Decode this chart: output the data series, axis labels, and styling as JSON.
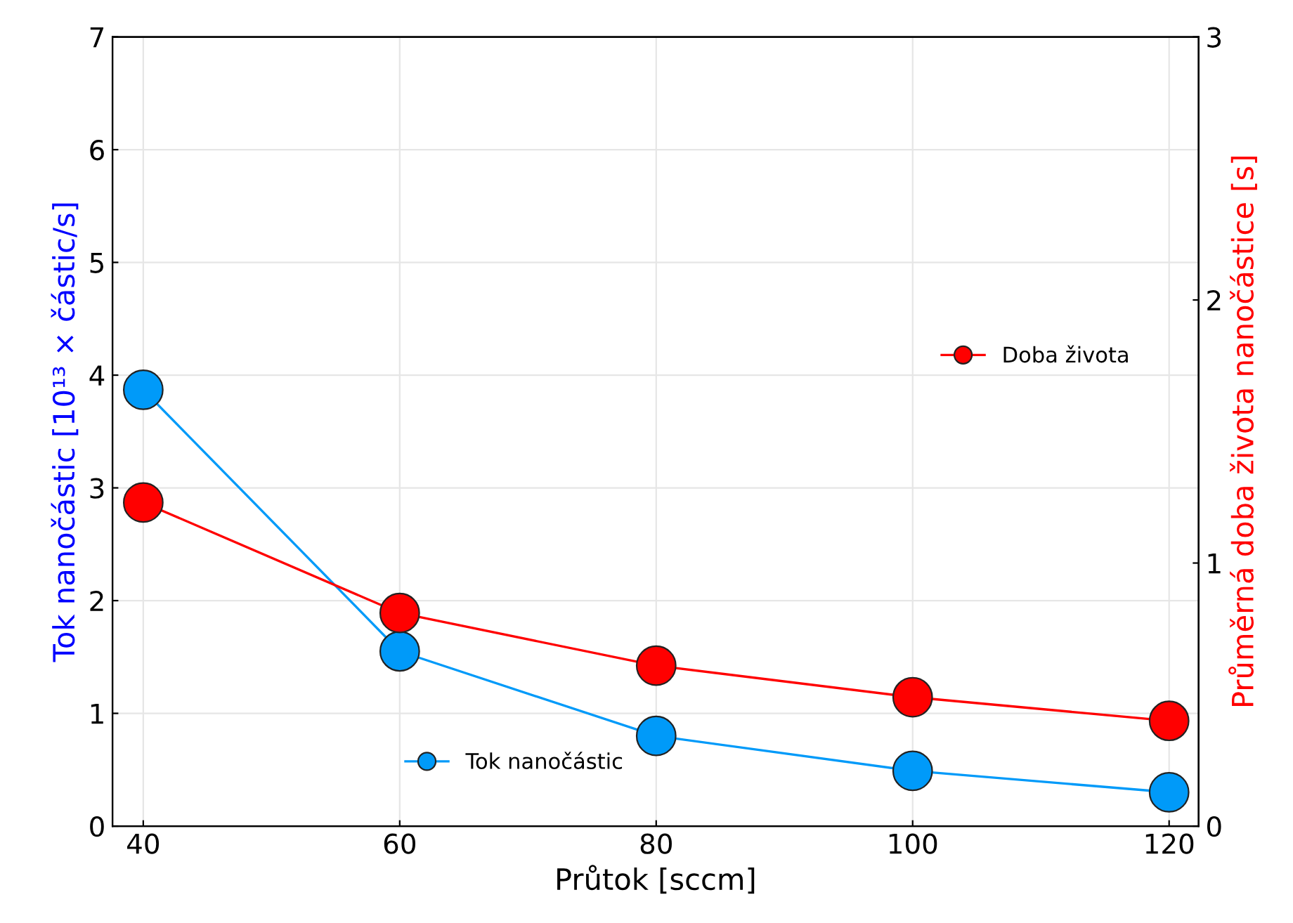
{
  "chart_data": {
    "type": "line",
    "xlabel": "Průtok [sccm]",
    "ylabel": "Tok nanočástic [10¹³ × částic/s]",
    "y2label": "Průměrná doba života nanočástice [s]",
    "x": [
      40,
      60,
      80,
      100,
      120
    ],
    "series": [
      {
        "name": "Tok nanočástic",
        "color": "#009af9",
        "values": [
          3.87,
          1.55,
          0.8,
          0.49,
          0.3
        ]
      },
      {
        "name": "Doba života",
        "color": "#ff0000",
        "axis": "y2",
        "values": [
          1.23,
          0.81,
          0.61,
          0.49,
          0.4
        ]
      }
    ],
    "xlim": [
      37.6,
      122.3
    ],
    "xticks": [
      40,
      60,
      80,
      100,
      120
    ],
    "ylim": [
      0,
      7
    ],
    "yticks": [
      0,
      1,
      2,
      3,
      4,
      5,
      6,
      7
    ],
    "y2lim": [
      0,
      3
    ],
    "y2ticks": [
      0,
      1,
      2,
      3
    ],
    "grid": true,
    "marker": "circle",
    "line_style": "solid",
    "legend": "center right"
  }
}
